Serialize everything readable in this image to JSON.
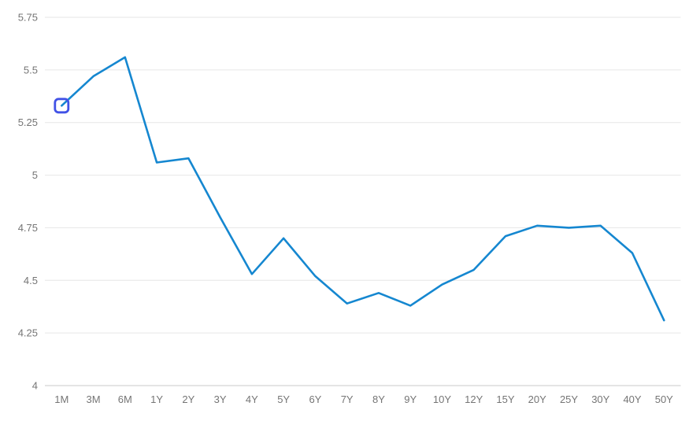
{
  "chart_data": {
    "type": "line",
    "title": "",
    "xlabel": "",
    "ylabel": "",
    "categories": [
      "1M",
      "3M",
      "6M",
      "1Y",
      "2Y",
      "3Y",
      "4Y",
      "5Y",
      "6Y",
      "7Y",
      "8Y",
      "9Y",
      "10Y",
      "12Y",
      "15Y",
      "20Y",
      "25Y",
      "30Y",
      "40Y",
      "50Y"
    ],
    "values": [
      5.33,
      5.47,
      5.56,
      5.06,
      5.08,
      4.8,
      4.53,
      4.7,
      4.52,
      4.39,
      4.44,
      4.38,
      4.48,
      4.55,
      4.71,
      4.76,
      4.75,
      4.76,
      4.63,
      4.31
    ],
    "ylim": [
      4,
      5.75
    ],
    "yticks": [
      4,
      4.25,
      4.5,
      4.75,
      5,
      5.25,
      5.5,
      5.75
    ],
    "ytick_labels": [
      "4",
      "4.25",
      "4.5",
      "4.75",
      "5",
      "5.25",
      "5.5",
      "5.75"
    ],
    "grid": true,
    "legend": false,
    "selected_point": {
      "category": "1M",
      "index": 0,
      "value": 5.33
    },
    "colors": {
      "line": "#1587d0",
      "marker_outline": "#4152e6",
      "labels": "#757575",
      "gridline": "#e6e6e6",
      "axis_line": "#c9c9c9",
      "background": "#ffffff"
    }
  }
}
